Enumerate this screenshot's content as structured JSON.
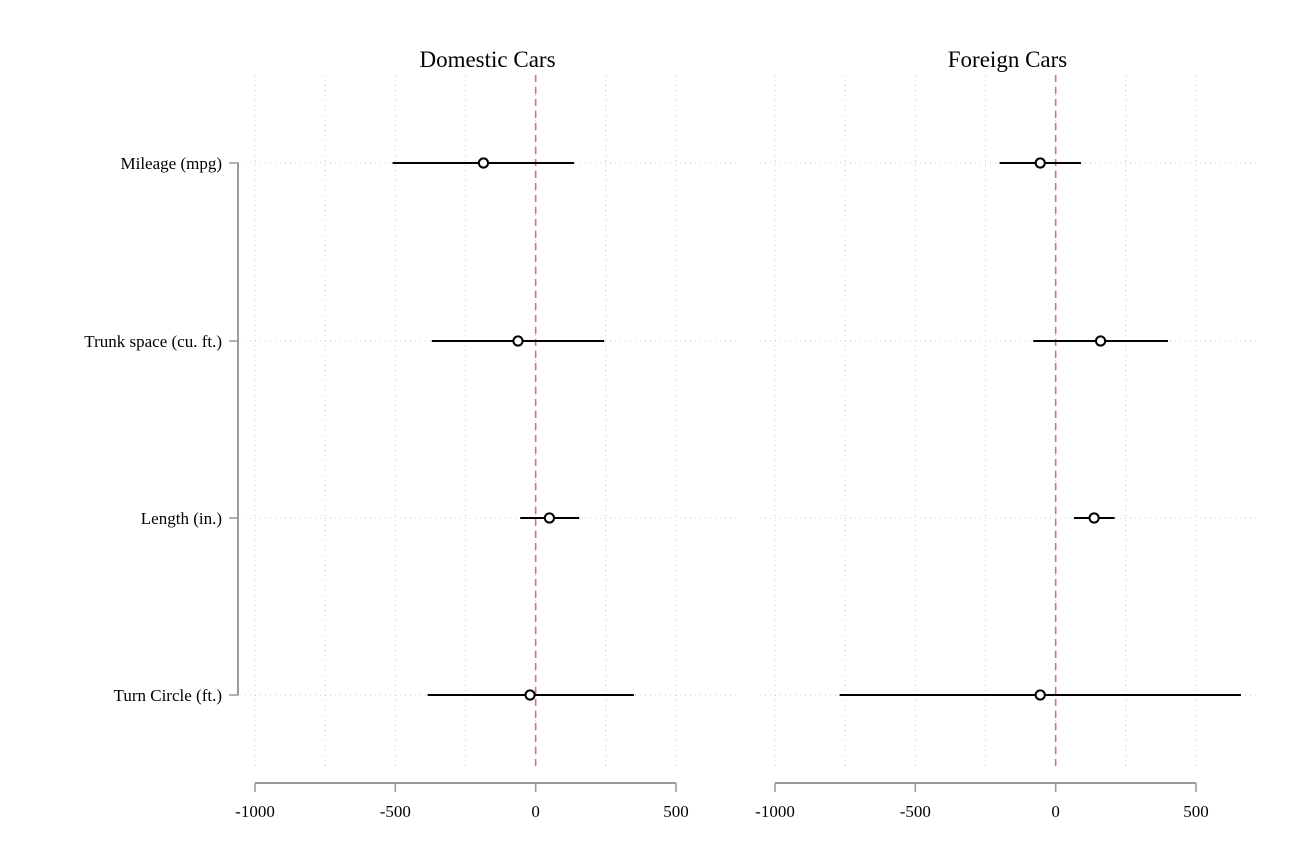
{
  "chart_data": {
    "type": "scatter",
    "categories": [
      "Mileage (mpg)",
      "Trunk space (cu. ft.)",
      "Length (in.)",
      "Turn Circle (ft.)"
    ],
    "xlim": [
      -1000,
      500
    ],
    "xticks": [
      -1000,
      -500,
      0,
      500
    ],
    "reference_line": 0,
    "grid": true,
    "panels": [
      {
        "title": "Domestic Cars",
        "series": [
          {
            "points": [
              {
                "category": "Mileage (mpg)",
                "estimate": -186,
                "ci_low": -510,
                "ci_high": 137
              },
              {
                "category": "Trunk space (cu. ft.)",
                "estimate": -63,
                "ci_low": -370,
                "ci_high": 244
              },
              {
                "category": "Length (in.)",
                "estimate": 49,
                "ci_low": -55,
                "ci_high": 155
              },
              {
                "category": "Turn Circle (ft.)",
                "estimate": -20,
                "ci_low": -385,
                "ci_high": 350
              }
            ]
          }
        ]
      },
      {
        "title": "Foreign Cars",
        "series": [
          {
            "points": [
              {
                "category": "Mileage (mpg)",
                "estimate": -55,
                "ci_low": -200,
                "ci_high": 90
              },
              {
                "category": "Trunk space (cu. ft.)",
                "estimate": 160,
                "ci_low": -80,
                "ci_high": 400
              },
              {
                "category": "Length (in.)",
                "estimate": 137,
                "ci_low": 65,
                "ci_high": 210
              },
              {
                "category": "Turn Circle (ft.)",
                "estimate": -55,
                "ci_low": -770,
                "ci_high": 660
              }
            ]
          }
        ]
      }
    ]
  },
  "colors": {
    "reference_line": "#d07090",
    "marker": "#000000",
    "grid": "#c8c8c8",
    "axis": "#999999"
  }
}
